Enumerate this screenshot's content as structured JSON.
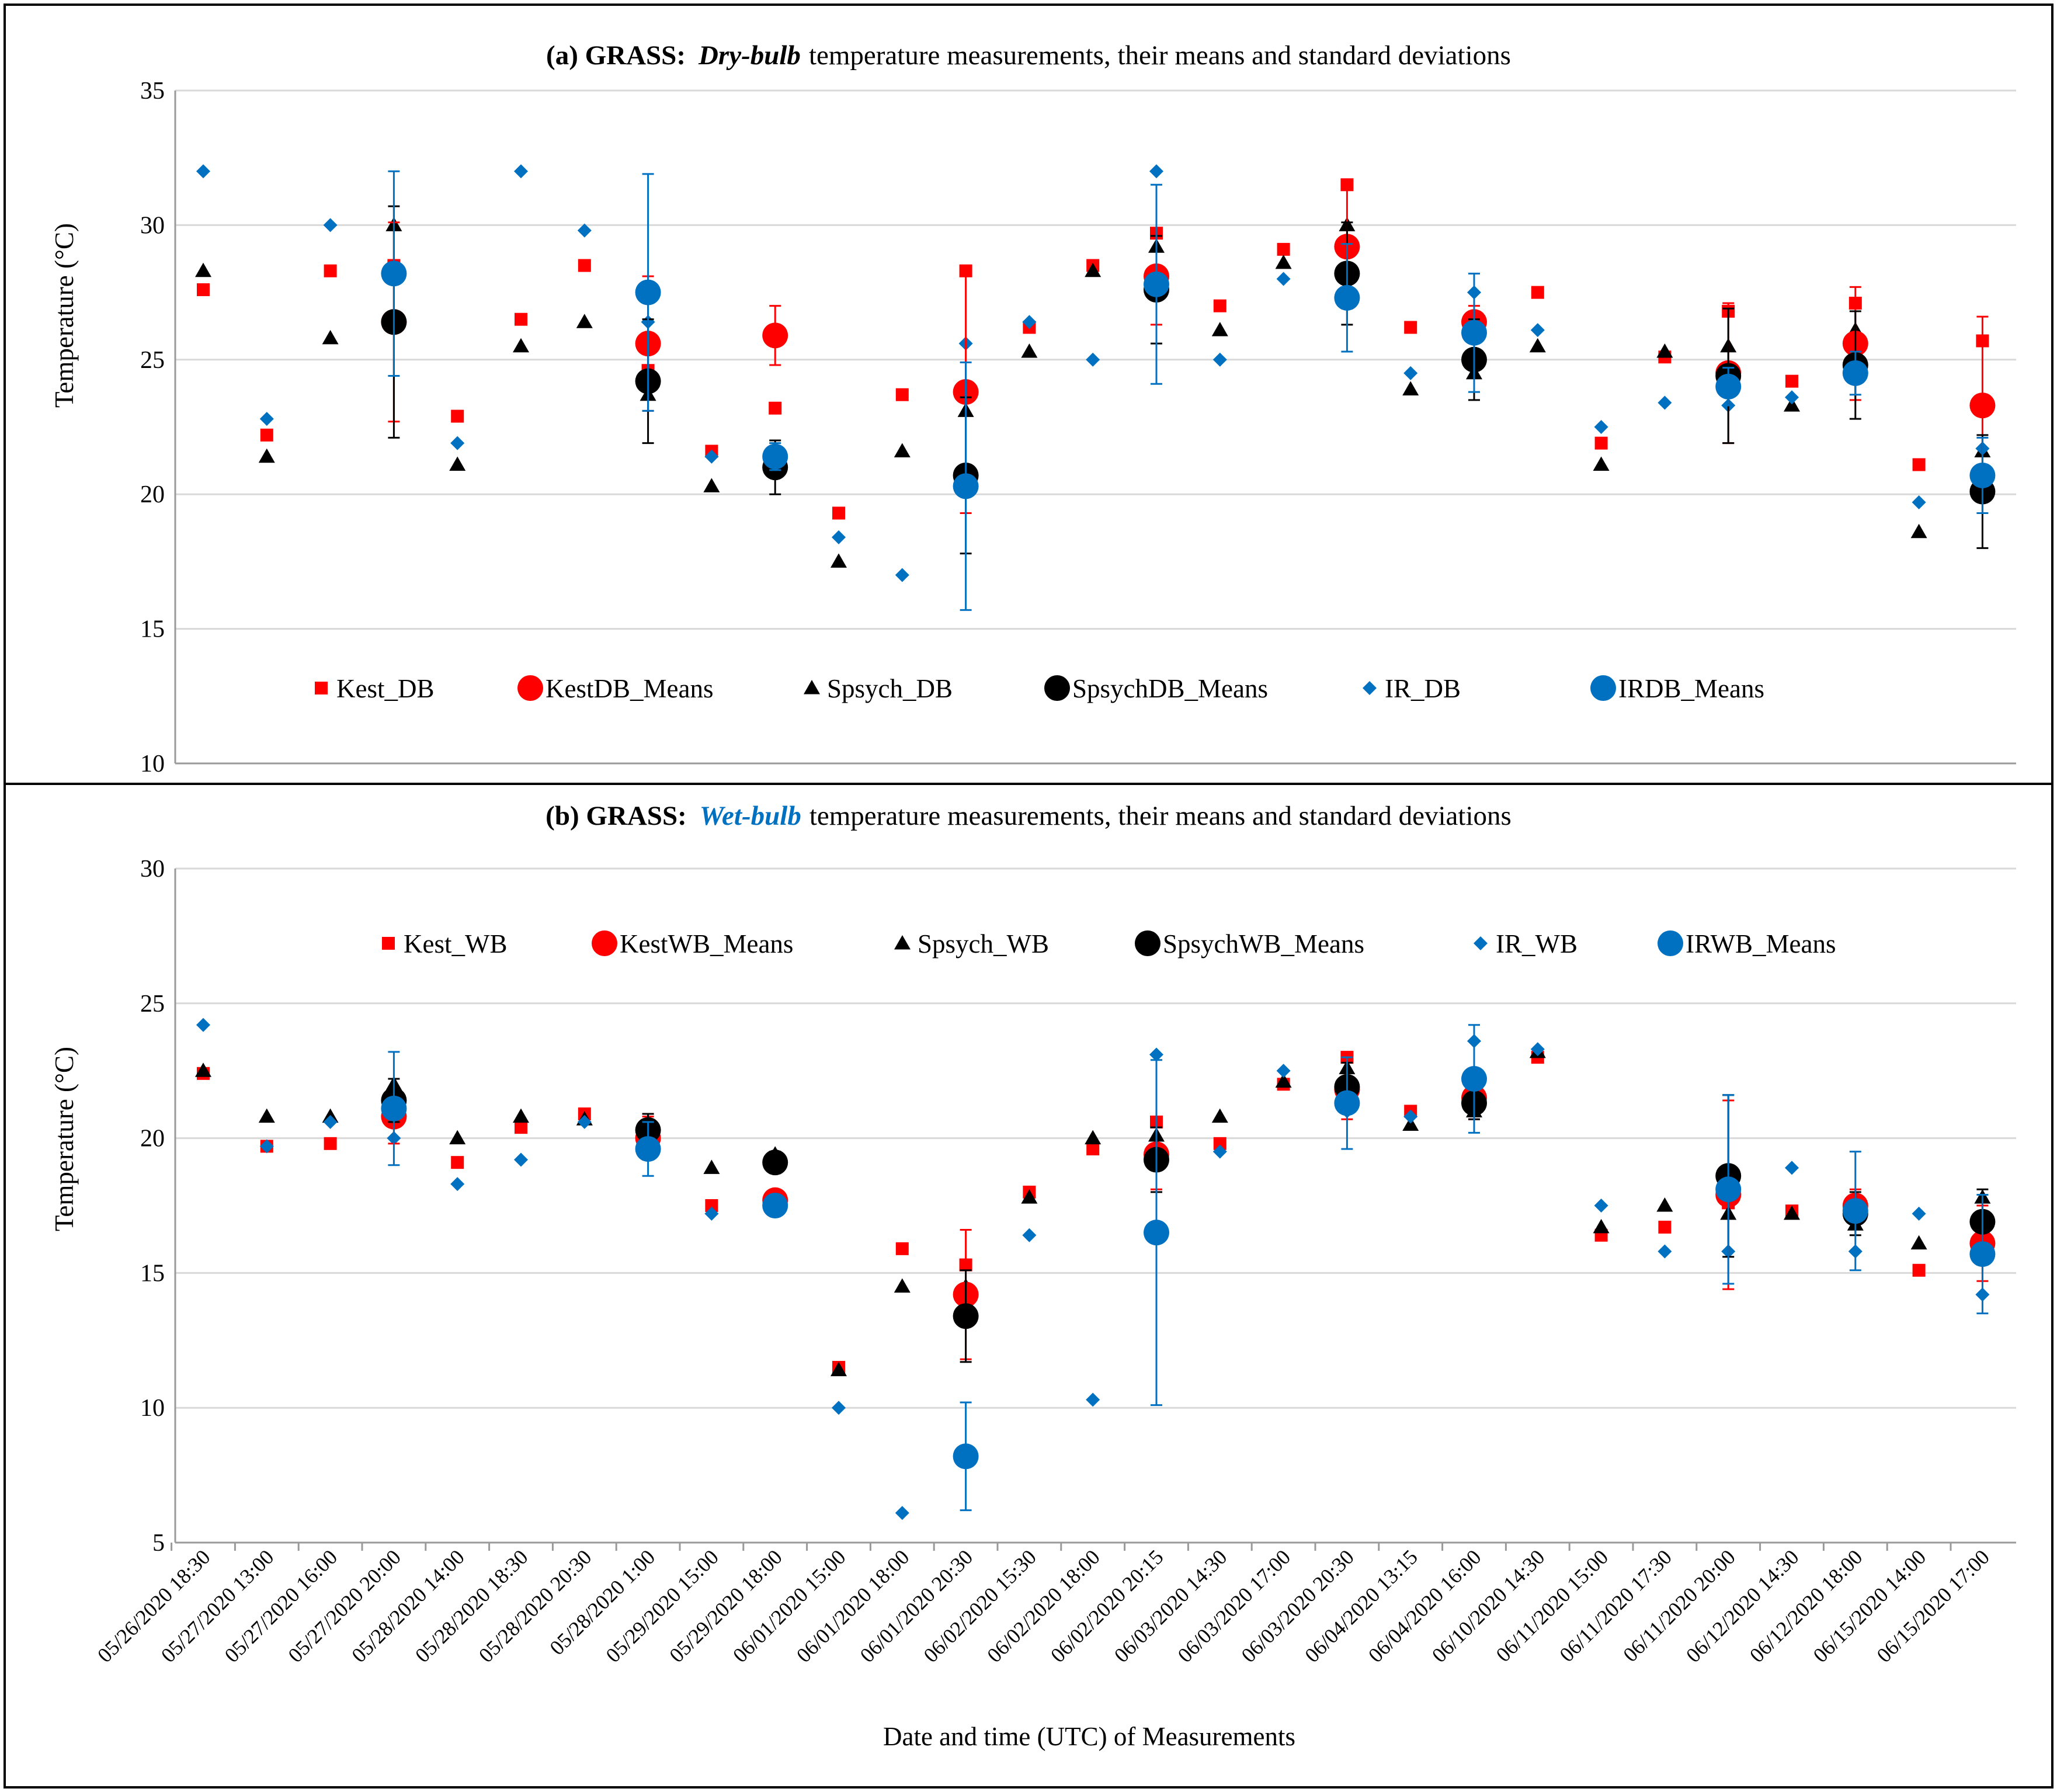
{
  "chart_data": {
    "type": "scatter",
    "categories": [
      "05/26/2020 18:30",
      "05/27/2020 13:00",
      "05/27/2020 16:00",
      "05/27/2020 20:00",
      "05/28/2020 14:00",
      "05/28/2020 18:30",
      "05/28/2020 20:30",
      "05/28/2020 1:00",
      "05/29/2020 15:00",
      "05/29/2020 18:00",
      "06/01/2020 15:00",
      "06/01/2020 18:00",
      "06/01/2020 20:30",
      "06/02/2020 15:30",
      "06/02/2020 18:00",
      "06/02/2020 20:15",
      "06/03/2020 14:30",
      "06/03/2020 17:00",
      "06/03/2020 20:30",
      "06/04/2020 13:15",
      "06/04/2020 16:00",
      "06/10/2020 14:30",
      "06/11/2020 15:00",
      "06/11/2020 17:30",
      "06/11/2020 20:00",
      "06/12/2020 14:30",
      "06/12/2020 18:00",
      "06/15/2020 14:00",
      "06/15/2020 17:00"
    ],
    "xlabel": "Date and time (UTC)  of Measurements",
    "panels": [
      {
        "id": "a",
        "title_parts": {
          "prefix": "(a) GRASS:",
          "emph": "Dry-bulb",
          "suffix": "temperature measurements, their means and standard deviations"
        },
        "ylabel": "Temperature (°C)",
        "ylim": [
          10,
          35
        ],
        "yticks": [
          10,
          15,
          20,
          25,
          30,
          35
        ],
        "gridlines": true,
        "legend_position": "lower-center",
        "series": [
          {
            "name": "Kest_DB",
            "marker": "square",
            "color": "#ff0000",
            "values": [
              27.6,
              22.2,
              28.3,
              28.5,
              22.9,
              26.5,
              28.5,
              24.6,
              21.6,
              23.2,
              19.3,
              23.7,
              28.3,
              26.2,
              28.5,
              29.7,
              27.0,
              29.1,
              31.5,
              26.2,
              26.5,
              27.5,
              21.9,
              25.1,
              26.8,
              24.2,
              27.1,
              21.1,
              25.7
            ]
          },
          {
            "name": "KestDB_Means",
            "marker": "circle",
            "color": "#ff0000",
            "size": "large",
            "values": [
              null,
              null,
              null,
              26.4,
              null,
              null,
              null,
              25.6,
              null,
              25.9,
              null,
              null,
              23.8,
              null,
              null,
              28.1,
              null,
              null,
              29.2,
              null,
              26.4,
              null,
              null,
              null,
              24.5,
              null,
              25.6,
              null,
              23.3
            ],
            "errors": [
              null,
              null,
              null,
              3.7,
              null,
              null,
              null,
              2.5,
              null,
              1.1,
              null,
              null,
              4.5,
              null,
              null,
              1.8,
              null,
              null,
              2.3,
              null,
              0.6,
              null,
              null,
              null,
              2.6,
              null,
              2.1,
              null,
              3.3
            ]
          },
          {
            "name": "Spsych_DB",
            "marker": "triangle",
            "color": "#000000",
            "values": [
              28.3,
              21.4,
              25.8,
              30.0,
              21.1,
              25.5,
              26.4,
              23.7,
              20.3,
              21.3,
              17.5,
              21.6,
              23.1,
              25.3,
              28.3,
              29.2,
              26.1,
              28.6,
              30.0,
              23.9,
              24.5,
              25.5,
              21.1,
              25.3,
              25.5,
              23.3,
              26.1,
              18.6,
              21.6
            ]
          },
          {
            "name": "SpsychDB_Means",
            "marker": "circle",
            "color": "#000000",
            "size": "large",
            "values": [
              null,
              null,
              null,
              26.4,
              null,
              null,
              null,
              24.2,
              null,
              21.0,
              null,
              null,
              20.7,
              null,
              null,
              27.6,
              null,
              null,
              28.2,
              null,
              25.0,
              null,
              null,
              null,
              24.4,
              null,
              24.8,
              null,
              20.1
            ],
            "errors": [
              null,
              null,
              null,
              4.3,
              null,
              null,
              null,
              2.3,
              null,
              1.0,
              null,
              null,
              2.9,
              null,
              null,
              2.0,
              null,
              null,
              1.9,
              null,
              1.5,
              null,
              null,
              null,
              2.5,
              null,
              2.0,
              null,
              2.1
            ]
          },
          {
            "name": "IR_DB",
            "marker": "diamond",
            "color": "#0070c0",
            "values": [
              32.0,
              22.8,
              30.0,
              26.4,
              21.9,
              32.0,
              29.8,
              26.4,
              21.4,
              21.1,
              18.4,
              17.0,
              25.6,
              26.4,
              25.0,
              32.0,
              25.0,
              28.0,
              29.0,
              24.5,
              27.5,
              26.1,
              22.5,
              23.4,
              23.3,
              23.6,
              25.3,
              19.7,
              21.7
            ]
          },
          {
            "name": "IRDB_Means",
            "marker": "circle",
            "color": "#0070c0",
            "size": "large",
            "values": [
              null,
              null,
              null,
              28.2,
              null,
              null,
              null,
              27.5,
              null,
              21.4,
              null,
              null,
              20.3,
              null,
              null,
              27.8,
              null,
              null,
              27.3,
              null,
              26.0,
              null,
              null,
              null,
              24.0,
              null,
              24.5,
              null,
              20.7
            ],
            "errors": [
              null,
              null,
              null,
              3.8,
              null,
              null,
              null,
              4.4,
              null,
              0.5,
              null,
              null,
              4.6,
              null,
              null,
              3.7,
              null,
              null,
              2.0,
              null,
              2.2,
              null,
              null,
              null,
              0.7,
              null,
              0.8,
              null,
              1.4
            ]
          }
        ]
      },
      {
        "id": "b",
        "title_parts": {
          "prefix": "(b) GRASS:",
          "emph": "Wet-bulb",
          "suffix": "temperature measurements, their means and standard deviations"
        },
        "ylabel": "Temperature (°C)",
        "ylim": [
          5,
          30
        ],
        "yticks": [
          5,
          10,
          15,
          20,
          25,
          30
        ],
        "gridlines": true,
        "legend_position": "upper-center",
        "series": [
          {
            "name": "Kest_WB",
            "marker": "square",
            "color": "#ff0000",
            "values": [
              22.4,
              19.7,
              19.8,
              20.8,
              19.1,
              20.4,
              20.9,
              20.0,
              17.5,
              17.8,
              11.5,
              15.9,
              15.3,
              18.0,
              19.6,
              20.6,
              19.8,
              22.0,
              23.0,
              21.0,
              21.2,
              23.0,
              16.4,
              16.7,
              17.6,
              17.3,
              17.4,
              15.1,
              16.0
            ]
          },
          {
            "name": "KestWB_Means",
            "marker": "circle",
            "color": "#ff0000",
            "size": "large",
            "values": [
              null,
              null,
              null,
              20.8,
              null,
              null,
              null,
              20.0,
              null,
              17.7,
              null,
              null,
              14.2,
              null,
              null,
              19.4,
              null,
              null,
              21.8,
              null,
              21.5,
              null,
              null,
              null,
              17.9,
              null,
              17.5,
              null,
              16.1
            ],
            "errors": [
              null,
              null,
              null,
              1.0,
              null,
              null,
              null,
              0.8,
              null,
              0.3,
              null,
              null,
              2.4,
              null,
              null,
              1.3,
              null,
              null,
              1.1,
              null,
              0.8,
              null,
              null,
              null,
              3.5,
              null,
              0.6,
              null,
              1.4
            ]
          },
          {
            "name": "Spsych_WB",
            "marker": "triangle",
            "color": "#000000",
            "values": [
              22.5,
              20.8,
              20.8,
              22.0,
              20.0,
              20.8,
              20.7,
              20.6,
              18.9,
              19.4,
              11.4,
              14.5,
              14.5,
              17.8,
              20.0,
              20.1,
              20.8,
              22.1,
              22.6,
              20.5,
              21.0,
              23.2,
              16.7,
              17.5,
              17.2,
              17.2,
              16.8,
              16.1,
              17.8
            ]
          },
          {
            "name": "SpsychWB_Means",
            "marker": "circle",
            "color": "#000000",
            "size": "large",
            "values": [
              null,
              null,
              null,
              21.4,
              null,
              null,
              null,
              20.3,
              null,
              19.1,
              null,
              null,
              13.4,
              null,
              null,
              19.2,
              null,
              null,
              21.9,
              null,
              21.3,
              null,
              null,
              null,
              18.6,
              null,
              17.2,
              null,
              16.9
            ],
            "errors": [
              null,
              null,
              null,
              0.8,
              null,
              null,
              null,
              0.6,
              null,
              0.4,
              null,
              null,
              1.7,
              null,
              null,
              1.2,
              null,
              null,
              0.9,
              null,
              0.6,
              null,
              null,
              null,
              3.0,
              null,
              0.8,
              null,
              1.2
            ]
          },
          {
            "name": "IR_WB",
            "marker": "diamond",
            "color": "#0070c0",
            "values": [
              24.2,
              19.7,
              20.6,
              20.0,
              18.3,
              19.2,
              20.6,
              19.7,
              17.2,
              17.5,
              10.0,
              6.1,
              8.3,
              16.4,
              10.3,
              23.1,
              19.5,
              22.5,
              21.0,
              20.8,
              23.6,
              23.3,
              17.5,
              15.8,
              15.8,
              18.9,
              15.8,
              17.2,
              14.2
            ]
          },
          {
            "name": "IRWB_Means",
            "marker": "circle",
            "color": "#0070c0",
            "size": "large",
            "values": [
              null,
              null,
              null,
              21.1,
              null,
              null,
              null,
              19.6,
              null,
              17.5,
              null,
              null,
              8.2,
              null,
              null,
              16.5,
              null,
              null,
              21.3,
              null,
              22.2,
              null,
              null,
              null,
              18.1,
              null,
              17.3,
              null,
              15.7
            ],
            "errors": [
              null,
              null,
              null,
              2.1,
              null,
              null,
              null,
              1.0,
              null,
              0.2,
              null,
              null,
              2.0,
              null,
              null,
              6.4,
              null,
              null,
              1.7,
              null,
              2.0,
              null,
              null,
              null,
              3.5,
              null,
              2.2,
              null,
              2.2
            ]
          }
        ]
      }
    ]
  }
}
